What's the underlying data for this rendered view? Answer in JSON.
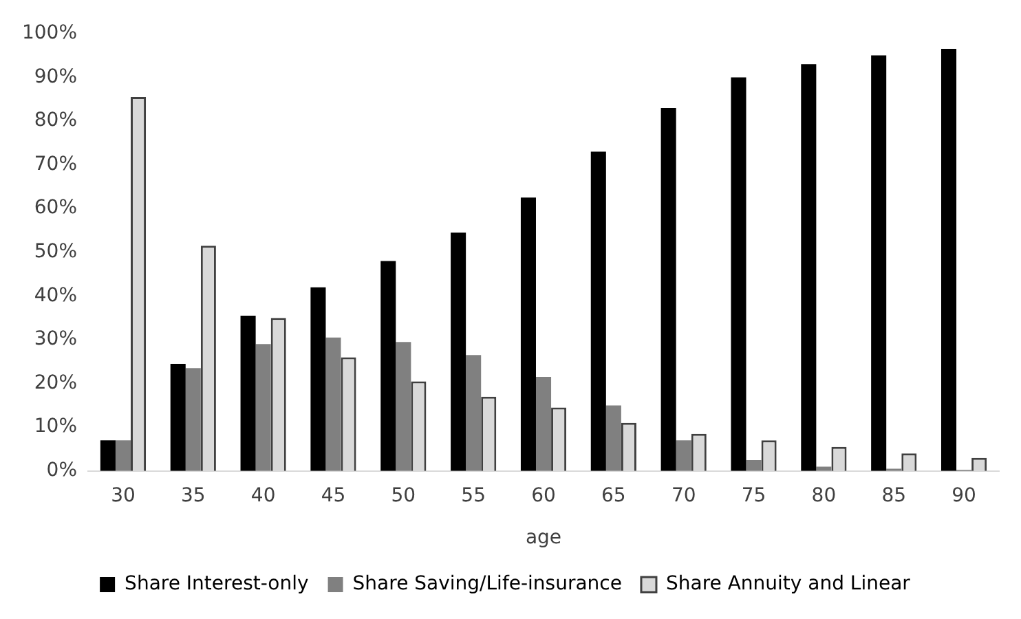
{
  "chart_data": {
    "type": "bar",
    "xlabel": "age",
    "categories": [
      "30",
      "35",
      "40",
      "45",
      "50",
      "55",
      "60",
      "65",
      "70",
      "75",
      "80",
      "85",
      "90"
    ],
    "series": [
      {
        "name": "Share Interest-only",
        "color": "#000000",
        "values": [
          7,
          24.5,
          35.5,
          42,
          48,
          54.5,
          62.5,
          73,
          83,
          90,
          93,
          95,
          96.5
        ]
      },
      {
        "name": "Share Saving/Life-insurance",
        "color": "#808080",
        "values": [
          7,
          23.5,
          29,
          30.5,
          29.5,
          26.5,
          21.5,
          15,
          7,
          2.5,
          1,
          0.5,
          0.3
        ]
      },
      {
        "name": "Share Annuity and Linear",
        "color": "#d9d9d9",
        "values": [
          85.5,
          51.5,
          35,
          26,
          20.5,
          17,
          14.5,
          11,
          8.5,
          7,
          5.5,
          4,
          3
        ]
      }
    ],
    "ylim": [
      0,
      100
    ],
    "yticks": [
      {
        "value": 0,
        "label": "0%"
      },
      {
        "value": 10,
        "label": "10%"
      },
      {
        "value": 20,
        "label": "20%"
      },
      {
        "value": 30,
        "label": "30%"
      },
      {
        "value": 40,
        "label": "40%"
      },
      {
        "value": 50,
        "label": "50%"
      },
      {
        "value": 60,
        "label": "60%"
      },
      {
        "value": 70,
        "label": "70%"
      },
      {
        "value": 80,
        "label": "80%"
      },
      {
        "value": 90,
        "label": "90%"
      },
      {
        "value": 100,
        "label": "100%"
      }
    ],
    "grid": false,
    "legend": "bottom"
  }
}
